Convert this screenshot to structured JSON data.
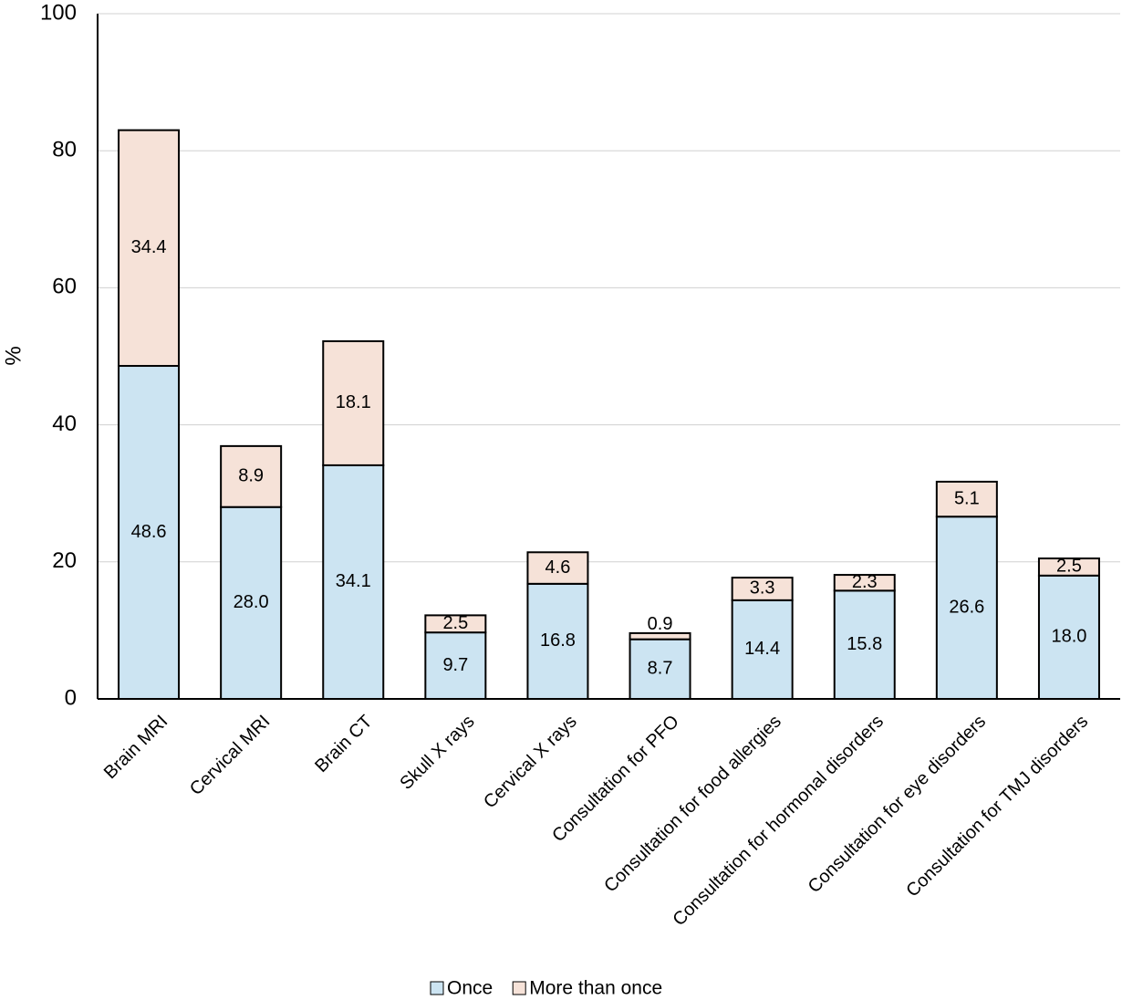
{
  "chart_data": {
    "type": "stacked-bar",
    "y_label": "%",
    "categories": [
      "Brain MRI",
      "Cervical MRI",
      "Brain CT",
      "Skull X rays",
      "Cervical X rays",
      "Consultation for PFO",
      "Consultation for food allergies",
      "Consultation for hormonal disorders",
      "Consultation for eye disorders",
      "Consultation for TMJ disorders"
    ],
    "series": [
      {
        "name": "Once",
        "color": "#cce4f2",
        "values": [
          48.6,
          28.0,
          34.1,
          9.7,
          16.8,
          8.7,
          14.4,
          15.8,
          26.6,
          18.0
        ],
        "value_labels": [
          "48.6",
          "28.0",
          "34.1",
          "9.7",
          "16.8",
          "8.7",
          "14.4",
          "15.8",
          "26.6",
          "18.0"
        ]
      },
      {
        "name": "More than once",
        "color": "#f6e2d8",
        "values": [
          34.4,
          8.9,
          18.1,
          2.5,
          4.6,
          0.9,
          3.3,
          2.3,
          5.1,
          2.5
        ],
        "value_labels": [
          "34.4",
          "8.9",
          "18.1",
          "2.5",
          "4.6",
          "0.9",
          "3.3",
          "2.3",
          "5.1",
          "2.5"
        ]
      }
    ],
    "ylim": [
      0,
      100
    ],
    "yticks": [
      0,
      20,
      40,
      60,
      80,
      100
    ],
    "grid": true
  }
}
